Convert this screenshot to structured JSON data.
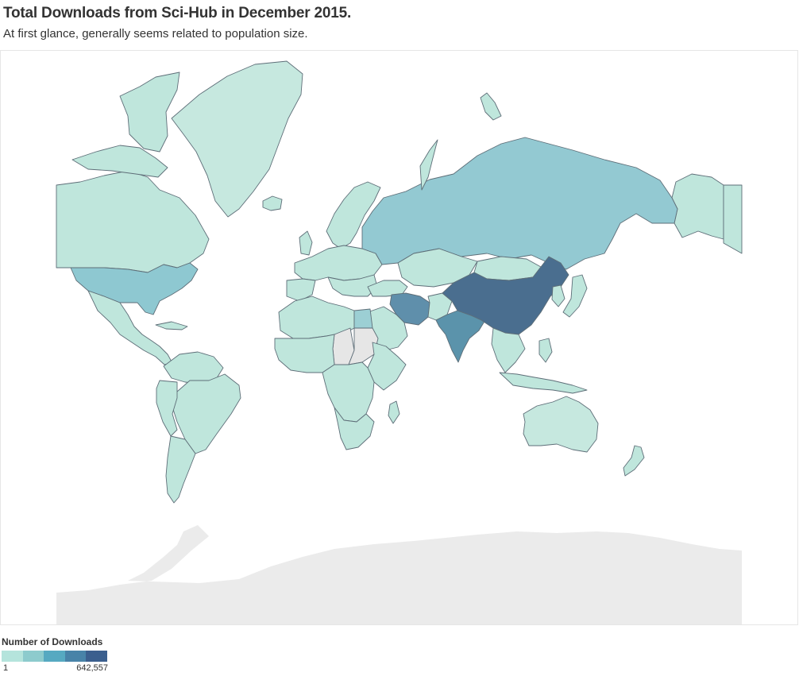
{
  "header": {
    "title": "Total Downloads from Sci-Hub in December 2015.",
    "subtitle": "At first glance, generally seems related to population size."
  },
  "legend": {
    "title": "Number of Downloads",
    "min_label": "1",
    "max_label": "642,557",
    "colors": [
      "#b5e4dc",
      "#8dcbcd",
      "#56a9c1",
      "#4883a8",
      "#3b5f8e"
    ]
  },
  "map": {
    "projection": "mercator",
    "no_data_color": "#e6e6e6",
    "countries": [
      {
        "name": "China",
        "level": 5,
        "color": "#4a6e8f"
      },
      {
        "name": "India",
        "level": 4,
        "color": "#5b93ab"
      },
      {
        "name": "Iran",
        "level": 4,
        "color": "#5f8fab"
      },
      {
        "name": "United States",
        "level": 2,
        "color": "#8ec8d1"
      },
      {
        "name": "Russia",
        "level": 2,
        "color": "#93c9d2"
      },
      {
        "name": "Egypt",
        "level": 2,
        "color": "#9ccfd4"
      },
      {
        "name": "Canada",
        "level": 1,
        "color": "#bfe6dc"
      },
      {
        "name": "Greenland",
        "level": 1,
        "color": "#c6e8df"
      },
      {
        "name": "Brazil",
        "level": 1,
        "color": "#bfe6dc"
      },
      {
        "name": "Australia",
        "level": 1,
        "color": "#c6e8df"
      },
      {
        "name": "Chad",
        "level": 0,
        "color": "#e6e6e6"
      },
      {
        "name": "Sudan",
        "level": 0,
        "color": "#e6e6e6"
      }
    ]
  }
}
